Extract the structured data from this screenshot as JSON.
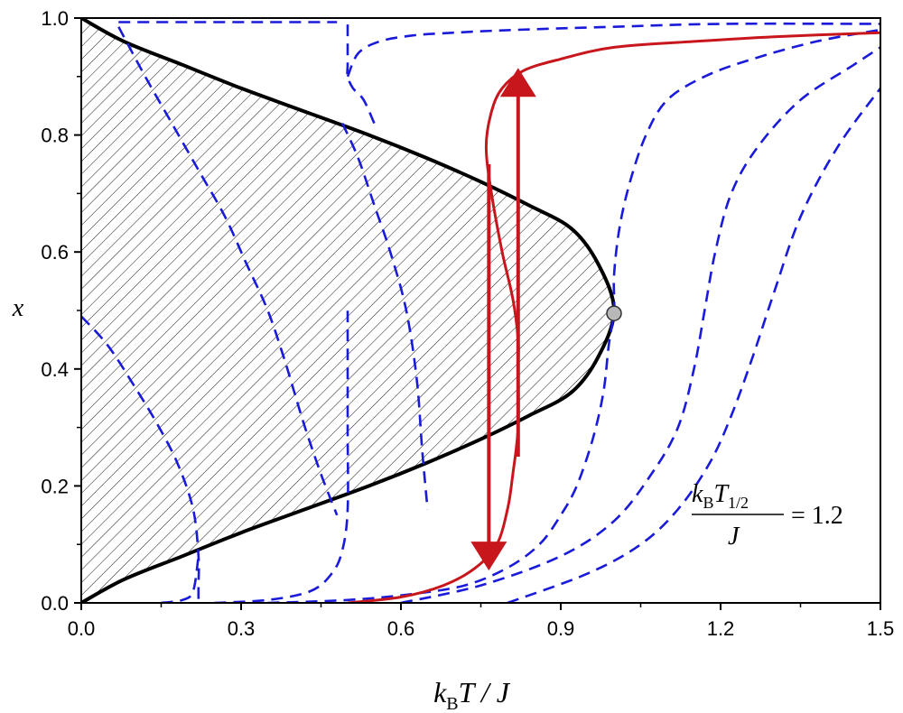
{
  "chart_data": {
    "type": "line",
    "title": "",
    "xlabel": {
      "k": "k",
      "sub": "B",
      "rest": "T / J"
    },
    "ylabel": "x",
    "xlim": [
      0.0,
      1.5
    ],
    "ylim": [
      0.0,
      1.0
    ],
    "xticks": [
      "0.0",
      "0.3",
      "0.6",
      "0.9",
      "1.2",
      "1.5"
    ],
    "yticks": [
      "0.0",
      "0.2",
      "0.4",
      "0.6",
      "0.8",
      "1.0"
    ],
    "grid": false,
    "legend": "none",
    "annotation": {
      "numerator_k": "k",
      "numerator_sub_B": "B",
      "numerator_T": "T",
      "numerator_sub_half": "1/2",
      "denominator": "J",
      "equals_value": "= 1.2"
    },
    "colors": {
      "boundary": "#000000",
      "dashed_series": "#1a1adb",
      "highlighted_series": "#c8161d",
      "critical_point": "#b8b8b8"
    },
    "series": [
      {
        "style": "boundary",
        "x": [
          0.0,
          0.08,
          0.19,
          0.3,
          0.42,
          0.54,
          0.65,
          0.75,
          0.84,
          0.92,
          0.97,
          1.0,
          0.97,
          0.92,
          0.84,
          0.75,
          0.65,
          0.54,
          0.42,
          0.3,
          0.19,
          0.08,
          0.0
        ],
        "y": [
          1.0,
          0.96,
          0.92,
          0.88,
          0.84,
          0.8,
          0.76,
          0.72,
          0.68,
          0.64,
          0.58,
          0.5,
          0.42,
          0.36,
          0.32,
          0.28,
          0.24,
          0.2,
          0.16,
          0.12,
          0.08,
          0.04,
          0.0
        ]
      },
      {
        "style": "dashed",
        "x": [
          0.0,
          0.05,
          0.1,
          0.14,
          0.18,
          0.21,
          0.22,
          0.22,
          0.22
        ],
        "y": [
          0.49,
          0.44,
          0.37,
          0.31,
          0.24,
          0.16,
          0.08,
          0.03,
          0.0
        ]
      },
      {
        "style": "dashed",
        "x": [
          0.07,
          0.12,
          0.17,
          0.22,
          0.27,
          0.31,
          0.35,
          0.38,
          0.4,
          0.42,
          0.45,
          0.48
        ],
        "y": [
          0.985,
          0.9,
          0.82,
          0.74,
          0.66,
          0.58,
          0.5,
          0.42,
          0.36,
          0.3,
          0.22,
          0.15
        ]
      },
      {
        "style": "dashed",
        "x": [
          0.07,
          0.2,
          0.34,
          0.48
        ],
        "y": [
          0.993,
          0.993,
          0.993,
          0.993
        ]
      },
      {
        "style": "dashed",
        "x": [
          0.49,
          0.52,
          0.55,
          0.58,
          0.61,
          0.63,
          0.64,
          0.65
        ],
        "y": [
          0.82,
          0.76,
          0.68,
          0.6,
          0.5,
          0.38,
          0.26,
          0.16
        ]
      },
      {
        "style": "dashed",
        "x": [
          0.15,
          0.19,
          0.21,
          0.22
        ],
        "y": [
          0.0,
          0.005,
          0.02,
          0.08
        ]
      },
      {
        "style": "dashed",
        "x": [
          0.55,
          0.53,
          0.51,
          0.5,
          0.5,
          0.5,
          0.5
        ],
        "y": [
          0.82,
          0.86,
          0.88,
          0.9,
          0.92,
          0.95,
          0.99
        ]
      },
      {
        "style": "dashed",
        "x": [
          0.5,
          0.52,
          0.56,
          0.62,
          0.7,
          0.82,
          1.0,
          1.2,
          1.5
        ],
        "y": [
          0.9,
          0.94,
          0.96,
          0.97,
          0.975,
          0.98,
          0.985,
          0.99,
          0.99
        ]
      },
      {
        "style": "dashed",
        "x": [
          0.25,
          0.35,
          0.43,
          0.47,
          0.49,
          0.5,
          0.5,
          0.5
        ],
        "y": [
          0.0,
          0.005,
          0.02,
          0.05,
          0.09,
          0.16,
          0.3,
          0.5
        ]
      },
      {
        "style": "dashed",
        "x": [
          0.35,
          0.5,
          0.62,
          0.72,
          0.8,
          0.86,
          0.9,
          0.93,
          0.96,
          0.98,
          0.99,
          1.0,
          1.0,
          1.01,
          1.03,
          1.06,
          1.1,
          1.17,
          1.26,
          1.38,
          1.5
        ],
        "y": [
          0.0,
          0.005,
          0.015,
          0.03,
          0.06,
          0.1,
          0.15,
          0.2,
          0.28,
          0.36,
          0.44,
          0.5,
          0.56,
          0.64,
          0.72,
          0.8,
          0.86,
          0.9,
          0.93,
          0.96,
          0.98
        ]
      },
      {
        "style": "dashed",
        "x": [
          0.6,
          0.75,
          0.9,
          1.0,
          1.07,
          1.12,
          1.15,
          1.17,
          1.19,
          1.22,
          1.27,
          1.35,
          1.45,
          1.5
        ],
        "y": [
          0.0,
          0.03,
          0.08,
          0.14,
          0.22,
          0.3,
          0.4,
          0.5,
          0.6,
          0.7,
          0.78,
          0.86,
          0.92,
          0.95
        ]
      },
      {
        "style": "dashed",
        "x": [
          0.8,
          0.95,
          1.05,
          1.12,
          1.18,
          1.22,
          1.26,
          1.3,
          1.35,
          1.42,
          1.5
        ],
        "y": [
          0.0,
          0.05,
          0.1,
          0.16,
          0.24,
          0.32,
          0.42,
          0.53,
          0.66,
          0.78,
          0.88
        ]
      },
      {
        "style": "highlighted",
        "x": [
          0.5,
          0.6,
          0.68,
          0.74,
          0.78,
          0.8,
          0.81,
          0.82,
          0.82,
          0.82,
          0.81,
          0.79,
          0.77,
          0.76,
          0.77,
          0.79,
          0.83,
          0.9,
          1.0,
          1.15,
          1.3,
          1.5
        ],
        "y": [
          0.0,
          0.01,
          0.03,
          0.06,
          0.1,
          0.16,
          0.22,
          0.3,
          0.4,
          0.45,
          0.52,
          0.6,
          0.7,
          0.78,
          0.84,
          0.88,
          0.91,
          0.93,
          0.95,
          0.96,
          0.968,
          0.975
        ]
      }
    ],
    "hysteresis_arrows": [
      {
        "x": 0.82,
        "from_y": 0.25,
        "to_y": 0.89
      },
      {
        "x": 0.765,
        "from_y": 0.75,
        "to_y": 0.08
      }
    ],
    "critical_point": {
      "x": 1.0,
      "y": 0.495
    }
  }
}
